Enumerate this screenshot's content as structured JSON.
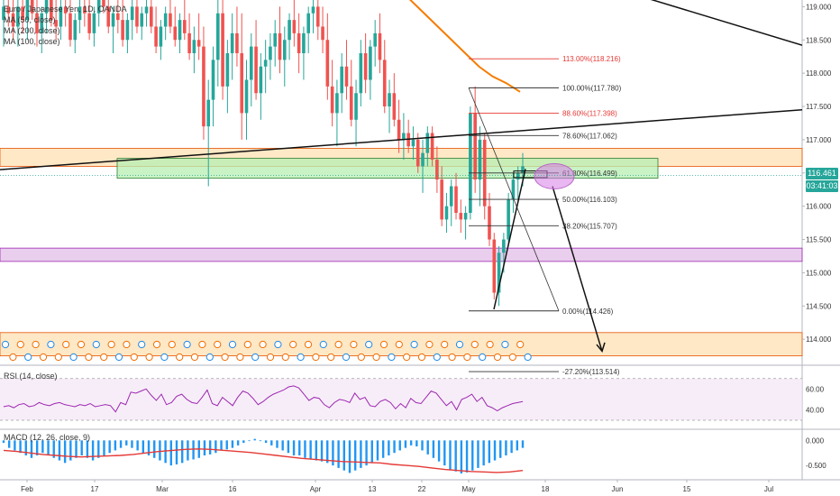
{
  "legend": {
    "symbol": "Euro / Japanese Yen, 1D, OANDA",
    "ma50": "MA (50, close)",
    "ma200": "MA (200, close)",
    "ma100": "MA (100, close)"
  },
  "price_tags": {
    "last": "116.461",
    "countdown": "03:41:03"
  },
  "colors": {
    "up": "#26a69a",
    "down": "#ef5350",
    "ma100": "#f57c00",
    "zone_green": "#b7efb2",
    "zone_orange": "#ffe0b2",
    "zone_purple": "#e1bee7",
    "fib_red": "#e53935",
    "ellipse": "#d77ce8",
    "rsi_line": "#9c27b0",
    "macd_hist": "#2196f3",
    "macd_signal": "#e53935"
  },
  "chart_data": [
    {
      "type": "candlestick",
      "pane": "price",
      "title": "Euro / Japanese Yen, 1D, OANDA",
      "x_ticks": [
        "Feb",
        "17",
        "Mar",
        "16",
        "Apr",
        "13",
        "22",
        "May",
        "18",
        "Jun",
        "15",
        "Jul"
      ],
      "y_ticks": [
        114.0,
        114.5,
        115.0,
        115.5,
        116.0,
        116.5,
        117.0,
        117.5,
        118.0,
        118.5,
        119.0
      ],
      "ylim": [
        113.65,
        119.1
      ],
      "last_price": 116.461,
      "candles_ohlc": [
        [
          118.8,
          119.3,
          118.4,
          119.0
        ],
        [
          119.0,
          119.4,
          118.7,
          118.9
        ],
        [
          118.9,
          119.2,
          118.5,
          118.7
        ],
        [
          118.7,
          119.1,
          118.4,
          119.0
        ],
        [
          119.0,
          119.3,
          118.6,
          118.8
        ],
        [
          118.8,
          119.2,
          118.5,
          119.1
        ],
        [
          119.1,
          119.4,
          118.8,
          118.9
        ],
        [
          118.9,
          119.2,
          118.4,
          118.6
        ],
        [
          118.6,
          119.0,
          118.3,
          118.9
        ],
        [
          118.9,
          119.3,
          118.6,
          119.1
        ],
        [
          119.1,
          119.4,
          118.7,
          118.8
        ],
        [
          118.8,
          119.1,
          118.5,
          118.7
        ],
        [
          118.7,
          119.2,
          118.5,
          119.0
        ],
        [
          119.0,
          119.3,
          118.7,
          118.9
        ],
        [
          118.9,
          119.1,
          118.4,
          118.5
        ],
        [
          118.5,
          118.9,
          118.3,
          118.8
        ],
        [
          118.8,
          119.2,
          118.6,
          119.0
        ],
        [
          119.0,
          119.3,
          118.7,
          118.9
        ],
        [
          118.9,
          119.2,
          118.5,
          118.6
        ],
        [
          118.6,
          119.0,
          118.4,
          118.9
        ],
        [
          118.9,
          119.3,
          118.7,
          119.1
        ],
        [
          119.1,
          119.4,
          118.9,
          119.0
        ],
        [
          119.0,
          119.2,
          118.6,
          118.7
        ],
        [
          118.7,
          119.0,
          118.3,
          118.9
        ],
        [
          118.9,
          119.2,
          118.6,
          118.8
        ],
        [
          118.8,
          119.1,
          118.4,
          118.5
        ],
        [
          118.5,
          118.9,
          118.3,
          118.8
        ],
        [
          118.8,
          119.1,
          118.5,
          119.0
        ],
        [
          119.0,
          119.3,
          118.6,
          118.7
        ],
        [
          118.7,
          119.0,
          118.5,
          118.9
        ],
        [
          118.9,
          119.2,
          118.7,
          119.0
        ],
        [
          119.0,
          119.3,
          118.6,
          118.7
        ],
        [
          118.7,
          119.0,
          118.3,
          118.4
        ],
        [
          118.4,
          118.8,
          118.2,
          118.7
        ],
        [
          118.7,
          119.0,
          118.5,
          118.9
        ],
        [
          118.9,
          119.2,
          118.6,
          118.7
        ],
        [
          118.7,
          119.0,
          118.4,
          118.5
        ],
        [
          118.5,
          118.9,
          118.3,
          118.8
        ],
        [
          118.8,
          119.1,
          118.5,
          118.6
        ],
        [
          118.6,
          118.9,
          118.2,
          118.3
        ],
        [
          118.3,
          118.7,
          118.0,
          118.5
        ],
        [
          118.5,
          118.9,
          118.2,
          118.4
        ],
        [
          118.4,
          118.7,
          117.0,
          117.2
        ],
        [
          117.2,
          117.9,
          116.3,
          117.6
        ],
        [
          117.6,
          118.4,
          117.2,
          118.2
        ],
        [
          118.2,
          119.1,
          117.8,
          118.9
        ],
        [
          118.9,
          119.2,
          117.6,
          117.8
        ],
        [
          117.8,
          118.5,
          117.4,
          118.3
        ],
        [
          118.3,
          118.9,
          117.9,
          118.6
        ],
        [
          118.6,
          119.0,
          118.1,
          118.3
        ],
        [
          118.3,
          118.9,
          117.0,
          117.4
        ],
        [
          117.4,
          118.2,
          117.0,
          117.9
        ],
        [
          117.9,
          118.6,
          117.5,
          118.4
        ],
        [
          118.4,
          118.8,
          117.6,
          117.7
        ],
        [
          117.7,
          118.3,
          117.3,
          118.1
        ],
        [
          118.1,
          118.5,
          117.7,
          118.2
        ],
        [
          118.2,
          118.6,
          117.9,
          118.4
        ],
        [
          118.4,
          118.8,
          118.1,
          118.6
        ],
        [
          118.6,
          119.0,
          118.0,
          118.2
        ],
        [
          118.2,
          118.7,
          117.8,
          118.5
        ],
        [
          118.5,
          118.9,
          118.2,
          118.8
        ],
        [
          118.8,
          119.1,
          118.4,
          118.6
        ],
        [
          118.6,
          118.9,
          118.0,
          118.3
        ],
        [
          118.3,
          118.7,
          117.9,
          118.6
        ],
        [
          118.6,
          119.0,
          118.3,
          118.9
        ],
        [
          118.9,
          119.3,
          118.6,
          119.0
        ],
        [
          119.0,
          119.3,
          118.5,
          118.7
        ],
        [
          118.7,
          119.0,
          118.3,
          118.5
        ],
        [
          118.5,
          118.9,
          117.6,
          117.8
        ],
        [
          117.8,
          118.2,
          117.2,
          117.4
        ],
        [
          117.4,
          117.9,
          116.9,
          117.7
        ],
        [
          117.7,
          118.3,
          117.4,
          118.1
        ],
        [
          118.1,
          118.5,
          117.6,
          117.8
        ],
        [
          117.8,
          118.2,
          117.2,
          117.3
        ],
        [
          117.3,
          117.9,
          116.9,
          117.7
        ],
        [
          117.7,
          118.5,
          117.5,
          118.3
        ],
        [
          118.3,
          118.6,
          117.7,
          117.9
        ],
        [
          117.9,
          118.5,
          117.6,
          118.4
        ],
        [
          118.4,
          118.8,
          118.1,
          118.6
        ],
        [
          118.6,
          118.9,
          118.0,
          118.2
        ],
        [
          118.2,
          118.5,
          117.4,
          117.5
        ],
        [
          117.5,
          117.9,
          117.1,
          117.7
        ],
        [
          117.7,
          118.0,
          117.2,
          117.3
        ],
        [
          117.3,
          117.6,
          116.8,
          117.0
        ],
        [
          117.0,
          117.4,
          116.7,
          117.1
        ],
        [
          117.1,
          117.3,
          116.8,
          116.9
        ],
        [
          116.9,
          117.2,
          116.7,
          117.0
        ],
        [
          117.0,
          117.1,
          116.5,
          116.6
        ],
        [
          116.6,
          117.0,
          116.2,
          116.8
        ],
        [
          116.8,
          117.2,
          116.6,
          117.1
        ],
        [
          117.1,
          117.2,
          116.6,
          116.7
        ],
        [
          116.7,
          116.9,
          116.2,
          116.4
        ],
        [
          116.4,
          116.6,
          115.7,
          115.8
        ],
        [
          115.8,
          116.2,
          115.6,
          116.0
        ],
        [
          116.0,
          116.4,
          115.7,
          116.3
        ],
        [
          116.3,
          116.5,
          115.8,
          115.9
        ],
        [
          115.9,
          116.1,
          115.6,
          115.8
        ],
        [
          115.8,
          116.0,
          115.5,
          115.9
        ],
        [
          115.9,
          117.5,
          115.8,
          117.4
        ],
        [
          117.4,
          117.8,
          116.2,
          116.4
        ],
        [
          116.4,
          117.2,
          116.0,
          117.0
        ],
        [
          117.0,
          117.1,
          115.8,
          116.0
        ],
        [
          116.0,
          116.2,
          115.4,
          115.5
        ],
        [
          115.5,
          115.6,
          114.6,
          114.7
        ],
        [
          114.7,
          115.4,
          114.5,
          115.3
        ],
        [
          115.3,
          115.6,
          115.0,
          115.5
        ],
        [
          115.5,
          116.2,
          115.4,
          116.1
        ],
        [
          116.1,
          116.5,
          115.9,
          116.4
        ],
        [
          116.4,
          116.6,
          116.1,
          116.5
        ],
        [
          116.5,
          116.8,
          116.3,
          116.6
        ]
      ],
      "moving_averages": [
        {
          "name": "MA (100, close)",
          "values": [
            119.5,
            119.3,
            119.1,
            118.9,
            118.7,
            118.5,
            118.3,
            118.1,
            117.95,
            117.85,
            117.72
          ]
        }
      ],
      "fibonacci": [
        {
          "label": "113.00%(118.216)",
          "level": 118.216,
          "color": "red"
        },
        {
          "label": "100.00%(117.780)",
          "level": 117.78,
          "color": "black"
        },
        {
          "label": "88.60%(117.398)",
          "level": 117.398,
          "color": "red"
        },
        {
          "label": "78.60%(117.062)",
          "level": 117.062,
          "color": "black"
        },
        {
          "label": "61.80%(116.499)",
          "level": 116.499,
          "color": "black"
        },
        {
          "label": "50.00%(116.103)",
          "level": 116.103,
          "color": "black"
        },
        {
          "label": "38.20%(115.707)",
          "level": 115.707,
          "color": "black"
        },
        {
          "label": "0.00%(114.426)",
          "level": 114.426,
          "color": "black"
        },
        {
          "label": "-27.20%(113.514)",
          "level": 113.514,
          "color": "black"
        }
      ],
      "zones": [
        {
          "color": "orange",
          "from": 116.6,
          "to": 116.87
        },
        {
          "color": "green",
          "from": 116.42,
          "to": 116.72
        },
        {
          "color": "purple",
          "from": 115.17,
          "to": 115.37
        },
        {
          "color": "orange",
          "from": 113.75,
          "to": 114.1
        }
      ]
    },
    {
      "type": "line",
      "pane": "rsi",
      "title": "RSI (14, close)",
      "y_ticks": [
        40.0,
        60.0
      ],
      "ylim": [
        30,
        75
      ],
      "values": [
        43,
        44,
        42,
        45,
        46,
        43,
        44,
        47,
        45,
        44,
        46,
        47,
        45,
        44,
        43,
        45,
        44,
        46,
        43,
        44,
        45,
        44,
        38,
        47,
        45,
        57,
        56,
        58,
        60,
        54,
        49,
        55,
        45,
        47,
        53,
        55,
        50,
        47,
        46,
        52,
        59,
        46,
        44,
        52,
        48,
        44,
        52,
        58,
        56,
        51,
        45,
        48,
        52,
        55,
        57,
        59,
        62,
        63,
        61,
        55,
        49,
        52,
        51,
        45,
        42,
        47,
        50,
        49,
        47,
        56,
        50,
        52,
        44,
        43,
        48,
        50,
        47,
        41,
        46,
        42,
        51,
        47,
        46,
        52,
        58,
        56,
        50,
        44,
        48,
        40,
        50,
        52,
        55,
        48,
        52,
        44,
        42,
        39,
        42,
        44,
        46,
        47,
        48
      ]
    },
    {
      "type": "bar",
      "pane": "macd",
      "title": "MACD (12, 26, close, 9)",
      "y_ticks": [
        0.0,
        -0.5
      ],
      "ylim": [
        -0.75,
        0.15
      ],
      "histogram": [
        -0.05,
        -0.15,
        -0.2,
        -0.25,
        -0.3,
        -0.35,
        -0.3,
        -0.25,
        -0.3,
        -0.35,
        -0.4,
        -0.45,
        -0.4,
        -0.35,
        -0.3,
        -0.35,
        -0.4,
        -0.35,
        -0.3,
        -0.25,
        -0.2,
        -0.15,
        -0.1,
        -0.15,
        -0.2,
        -0.25,
        -0.3,
        -0.35,
        -0.4,
        -0.45,
        -0.5,
        -0.48,
        -0.45,
        -0.4,
        -0.38,
        -0.35,
        -0.3,
        -0.28,
        -0.25,
        -0.2,
        -0.18,
        -0.15,
        -0.1,
        -0.05,
        0.0,
        0.03,
        0.0,
        -0.05,
        -0.1,
        -0.15,
        -0.2,
        -0.25,
        -0.3,
        -0.3,
        -0.35,
        -0.38,
        -0.4,
        -0.42,
        -0.45,
        -0.5,
        -0.55,
        -0.6,
        -0.65,
        -0.6,
        -0.55,
        -0.5,
        -0.45,
        -0.4,
        -0.35,
        -0.3,
        -0.25,
        -0.2,
        -0.15,
        -0.1,
        -0.12,
        -0.2,
        -0.28,
        -0.35,
        -0.42,
        -0.5,
        -0.58,
        -0.62,
        -0.66,
        -0.64,
        -0.6,
        -0.55,
        -0.5,
        -0.45,
        -0.4,
        -0.35,
        -0.3,
        -0.25,
        -0.2,
        -0.15
      ],
      "signal": [
        -0.2,
        -0.22,
        -0.25,
        -0.28,
        -0.3,
        -0.32,
        -0.33,
        -0.32,
        -0.31,
        -0.3,
        -0.28,
        -0.25,
        -0.22,
        -0.2,
        -0.18,
        -0.17,
        -0.18,
        -0.2,
        -0.22,
        -0.24,
        -0.27,
        -0.3,
        -0.33,
        -0.36,
        -0.38,
        -0.4,
        -0.42,
        -0.43,
        -0.44,
        -0.45,
        -0.48,
        -0.5,
        -0.52,
        -0.55,
        -0.58,
        -0.6,
        -0.62,
        -0.63,
        -0.64,
        -0.63,
        -0.6
      ]
    }
  ]
}
